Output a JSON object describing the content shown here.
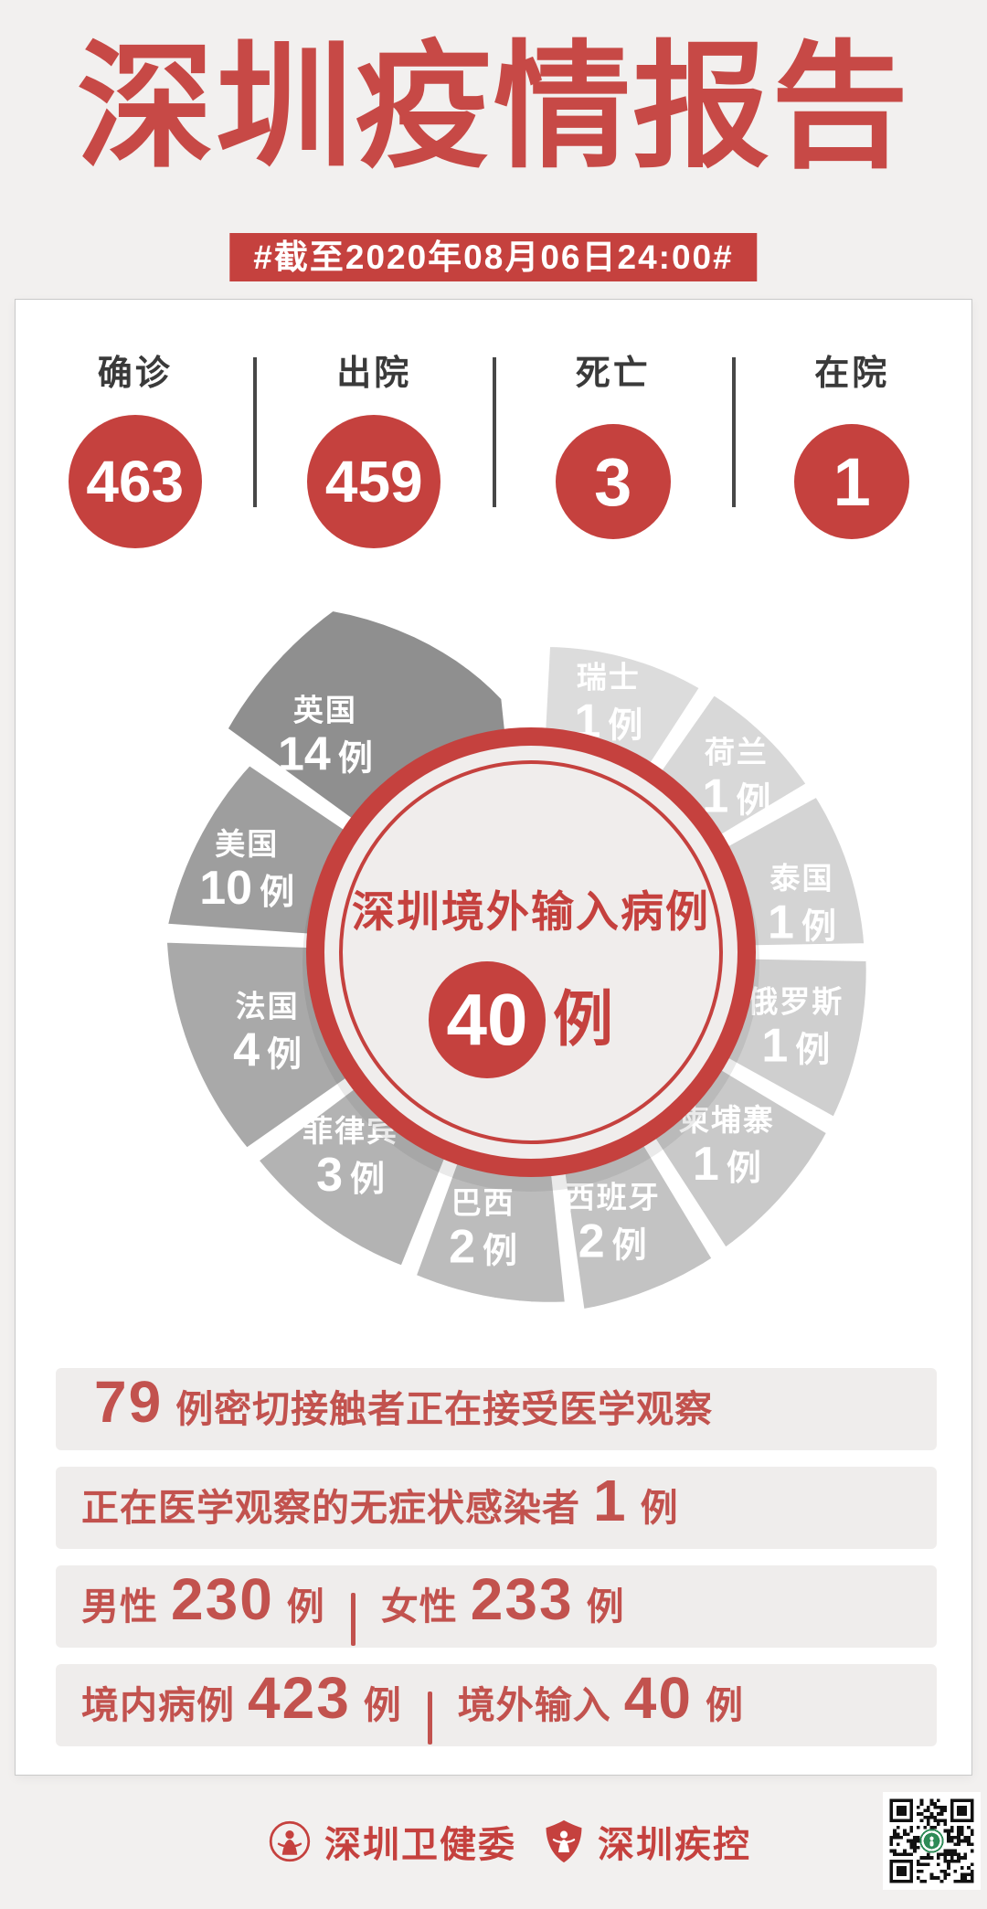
{
  "colors": {
    "red": "#c5413e",
    "red_title": "#c74946",
    "red_text": "#c2524e",
    "page_bg": "#f2f0ef",
    "row_bg": "#efedec",
    "stat_label": "#3a3a3a",
    "stat_divider": "#474747",
    "qr_green": "#2e8b57",
    "pie_center_fill": "#f0edec"
  },
  "title": "深圳疫情报告",
  "banner": "#截至2020年08月06日24:00#",
  "stats": [
    {
      "label": "确诊",
      "value": "463",
      "size": "big"
    },
    {
      "label": "出院",
      "value": "459",
      "size": "big"
    },
    {
      "label": "死亡",
      "value": "3",
      "size": "small"
    },
    {
      "label": "在院",
      "value": "1",
      "size": "small"
    }
  ],
  "chart_data": {
    "type": "pie",
    "title": "深圳境外输入病例",
    "center_value": "40",
    "unit": "例",
    "total": 40,
    "legend_position": "labels-on-slices",
    "slices": [
      {
        "name": "瑞士",
        "value": 1,
        "a0": 3,
        "a1": 33,
        "r0": 338,
        "r1": 346,
        "color": "#dcdcdc",
        "label": [
          17,
          290
        ]
      },
      {
        "name": "荷兰",
        "value": 1,
        "a0": 35,
        "a1": 59,
        "r0": 348,
        "r1": 356,
        "color": "#d8d8d8",
        "label": [
          49,
          298
        ]
      },
      {
        "name": "泰国",
        "value": 1,
        "a0": 61,
        "a1": 89,
        "r0": 358,
        "r1": 368,
        "color": "#d4d4d4",
        "label": [
          79,
          302
        ]
      },
      {
        "name": "俄罗斯",
        "value": 1,
        "a0": 91,
        "a1": 119,
        "r0": 370,
        "r1": 380,
        "color": "#cfcfcf",
        "label": [
          105,
          300
        ]
      },
      {
        "name": "柬埔寨",
        "value": 1,
        "a0": 121,
        "a1": 147,
        "r0": 382,
        "r1": 390,
        "color": "#c9c9c9",
        "label": [
          134,
          298
        ]
      },
      {
        "name": "西班牙",
        "value": 2,
        "a0": 149,
        "a1": 172,
        "r0": 392,
        "r1": 398,
        "color": "#c3c3c3",
        "label": [
          163,
          305
        ]
      },
      {
        "name": "巴西",
        "value": 2,
        "a0": 174,
        "a1": 200,
        "r0": 388,
        "r1": 378,
        "color": "#bcbcbc",
        "label": [
          190,
          302
        ]
      },
      {
        "name": "菲律宾",
        "value": 3,
        "a0": 202,
        "a1": 233,
        "r0": 374,
        "r1": 378,
        "color": "#b3b3b3",
        "label": [
          222,
          295
        ]
      },
      {
        "name": "法国",
        "value": 4,
        "a0": 235,
        "a1": 272,
        "r0": 380,
        "r1": 402,
        "color": "#a9a9a9",
        "label": [
          254,
          300
        ]
      },
      {
        "name": "美国",
        "value": 10,
        "a0": 274,
        "a1": 304,
        "r0": 402,
        "r1": 372,
        "color": "#9e9e9e",
        "label": [
          287,
          325
        ]
      },
      {
        "name": "英国",
        "value": 14,
        "a0": 306,
        "a1": 354,
        "r0": 415,
        "rp": 435,
        "pf": 0.5,
        "r1": 280,
        "color": "#8f8f8f",
        "label": [
          317,
          330
        ]
      }
    ]
  },
  "rows": [
    {
      "parts": [
        {
          "text": "79",
          "big": true
        },
        {
          "text": "例密切接触者正在接受医学观察"
        }
      ]
    },
    {
      "parts": [
        {
          "text": "正在医学观察的无症状感染者"
        },
        {
          "text": "1",
          "big": true
        },
        {
          "text": "例"
        }
      ]
    },
    {
      "parts": [
        {
          "text": "男性"
        },
        {
          "text": "230",
          "big": true
        },
        {
          "text": "例"
        },
        {
          "divider": true
        },
        {
          "text": "女性"
        },
        {
          "text": "233",
          "big": true
        },
        {
          "text": "例"
        }
      ]
    },
    {
      "parts": [
        {
          "text": "境内病例"
        },
        {
          "text": "423",
          "big": true
        },
        {
          "text": "例"
        },
        {
          "divider": true
        },
        {
          "text": "境外输入"
        },
        {
          "text": "40",
          "big": true
        },
        {
          "text": "例"
        }
      ]
    }
  ],
  "footer": {
    "org1": "深圳卫健委",
    "org2": "深圳疾控"
  }
}
